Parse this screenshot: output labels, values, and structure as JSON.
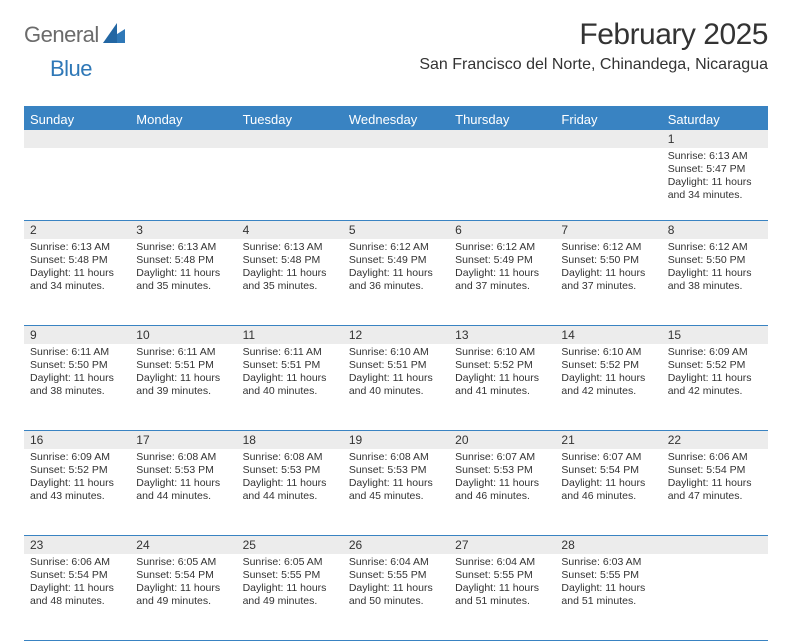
{
  "brand": {
    "general": "General",
    "blue": "Blue",
    "color_gray": "#6b6b6b",
    "color_blue": "#2f78b7"
  },
  "title": "February 2025",
  "location": "San Francisco del Norte, Chinandega, Nicaragua",
  "header_bg": "#3983c2",
  "header_fg": "#ffffff",
  "daynum_bg": "#ececec",
  "divider_color": "#3983c2",
  "text_color": "#333333",
  "font_family": "Arial",
  "day_labels": [
    "Sunday",
    "Monday",
    "Tuesday",
    "Wednesday",
    "Thursday",
    "Friday",
    "Saturday"
  ],
  "weeks": [
    {
      "nums": [
        "",
        "",
        "",
        "",
        "",
        "",
        "1"
      ],
      "cells": [
        {
          "sunrise": "",
          "sunset": "",
          "daylight": ""
        },
        {
          "sunrise": "",
          "sunset": "",
          "daylight": ""
        },
        {
          "sunrise": "",
          "sunset": "",
          "daylight": ""
        },
        {
          "sunrise": "",
          "sunset": "",
          "daylight": ""
        },
        {
          "sunrise": "",
          "sunset": "",
          "daylight": ""
        },
        {
          "sunrise": "",
          "sunset": "",
          "daylight": ""
        },
        {
          "sunrise": "Sunrise: 6:13 AM",
          "sunset": "Sunset: 5:47 PM",
          "daylight": "Daylight: 11 hours and 34 minutes."
        }
      ]
    },
    {
      "nums": [
        "2",
        "3",
        "4",
        "5",
        "6",
        "7",
        "8"
      ],
      "cells": [
        {
          "sunrise": "Sunrise: 6:13 AM",
          "sunset": "Sunset: 5:48 PM",
          "daylight": "Daylight: 11 hours and 34 minutes."
        },
        {
          "sunrise": "Sunrise: 6:13 AM",
          "sunset": "Sunset: 5:48 PM",
          "daylight": "Daylight: 11 hours and 35 minutes."
        },
        {
          "sunrise": "Sunrise: 6:13 AM",
          "sunset": "Sunset: 5:48 PM",
          "daylight": "Daylight: 11 hours and 35 minutes."
        },
        {
          "sunrise": "Sunrise: 6:12 AM",
          "sunset": "Sunset: 5:49 PM",
          "daylight": "Daylight: 11 hours and 36 minutes."
        },
        {
          "sunrise": "Sunrise: 6:12 AM",
          "sunset": "Sunset: 5:49 PM",
          "daylight": "Daylight: 11 hours and 37 minutes."
        },
        {
          "sunrise": "Sunrise: 6:12 AM",
          "sunset": "Sunset: 5:50 PM",
          "daylight": "Daylight: 11 hours and 37 minutes."
        },
        {
          "sunrise": "Sunrise: 6:12 AM",
          "sunset": "Sunset: 5:50 PM",
          "daylight": "Daylight: 11 hours and 38 minutes."
        }
      ]
    },
    {
      "nums": [
        "9",
        "10",
        "11",
        "12",
        "13",
        "14",
        "15"
      ],
      "cells": [
        {
          "sunrise": "Sunrise: 6:11 AM",
          "sunset": "Sunset: 5:50 PM",
          "daylight": "Daylight: 11 hours and 38 minutes."
        },
        {
          "sunrise": "Sunrise: 6:11 AM",
          "sunset": "Sunset: 5:51 PM",
          "daylight": "Daylight: 11 hours and 39 minutes."
        },
        {
          "sunrise": "Sunrise: 6:11 AM",
          "sunset": "Sunset: 5:51 PM",
          "daylight": "Daylight: 11 hours and 40 minutes."
        },
        {
          "sunrise": "Sunrise: 6:10 AM",
          "sunset": "Sunset: 5:51 PM",
          "daylight": "Daylight: 11 hours and 40 minutes."
        },
        {
          "sunrise": "Sunrise: 6:10 AM",
          "sunset": "Sunset: 5:52 PM",
          "daylight": "Daylight: 11 hours and 41 minutes."
        },
        {
          "sunrise": "Sunrise: 6:10 AM",
          "sunset": "Sunset: 5:52 PM",
          "daylight": "Daylight: 11 hours and 42 minutes."
        },
        {
          "sunrise": "Sunrise: 6:09 AM",
          "sunset": "Sunset: 5:52 PM",
          "daylight": "Daylight: 11 hours and 42 minutes."
        }
      ]
    },
    {
      "nums": [
        "16",
        "17",
        "18",
        "19",
        "20",
        "21",
        "22"
      ],
      "cells": [
        {
          "sunrise": "Sunrise: 6:09 AM",
          "sunset": "Sunset: 5:52 PM",
          "daylight": "Daylight: 11 hours and 43 minutes."
        },
        {
          "sunrise": "Sunrise: 6:08 AM",
          "sunset": "Sunset: 5:53 PM",
          "daylight": "Daylight: 11 hours and 44 minutes."
        },
        {
          "sunrise": "Sunrise: 6:08 AM",
          "sunset": "Sunset: 5:53 PM",
          "daylight": "Daylight: 11 hours and 44 minutes."
        },
        {
          "sunrise": "Sunrise: 6:08 AM",
          "sunset": "Sunset: 5:53 PM",
          "daylight": "Daylight: 11 hours and 45 minutes."
        },
        {
          "sunrise": "Sunrise: 6:07 AM",
          "sunset": "Sunset: 5:53 PM",
          "daylight": "Daylight: 11 hours and 46 minutes."
        },
        {
          "sunrise": "Sunrise: 6:07 AM",
          "sunset": "Sunset: 5:54 PM",
          "daylight": "Daylight: 11 hours and 46 minutes."
        },
        {
          "sunrise": "Sunrise: 6:06 AM",
          "sunset": "Sunset: 5:54 PM",
          "daylight": "Daylight: 11 hours and 47 minutes."
        }
      ]
    },
    {
      "nums": [
        "23",
        "24",
        "25",
        "26",
        "27",
        "28",
        ""
      ],
      "cells": [
        {
          "sunrise": "Sunrise: 6:06 AM",
          "sunset": "Sunset: 5:54 PM",
          "daylight": "Daylight: 11 hours and 48 minutes."
        },
        {
          "sunrise": "Sunrise: 6:05 AM",
          "sunset": "Sunset: 5:54 PM",
          "daylight": "Daylight: 11 hours and 49 minutes."
        },
        {
          "sunrise": "Sunrise: 6:05 AM",
          "sunset": "Sunset: 5:55 PM",
          "daylight": "Daylight: 11 hours and 49 minutes."
        },
        {
          "sunrise": "Sunrise: 6:04 AM",
          "sunset": "Sunset: 5:55 PM",
          "daylight": "Daylight: 11 hours and 50 minutes."
        },
        {
          "sunrise": "Sunrise: 6:04 AM",
          "sunset": "Sunset: 5:55 PM",
          "daylight": "Daylight: 11 hours and 51 minutes."
        },
        {
          "sunrise": "Sunrise: 6:03 AM",
          "sunset": "Sunset: 5:55 PM",
          "daylight": "Daylight: 11 hours and 51 minutes."
        },
        {
          "sunrise": "",
          "sunset": "",
          "daylight": ""
        }
      ]
    }
  ]
}
